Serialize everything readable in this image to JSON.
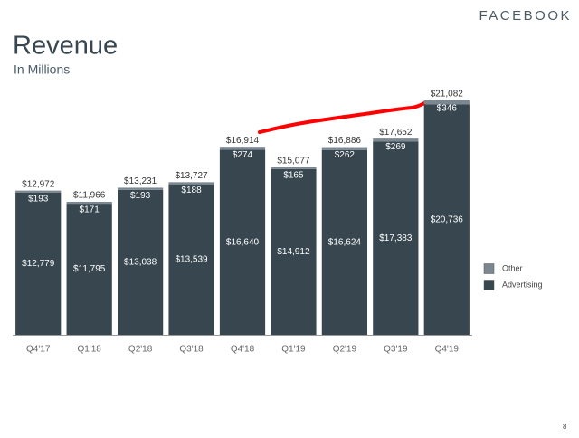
{
  "brand": "FACEBOOK",
  "page_number": "8",
  "chart_data": {
    "type": "stacked-bar",
    "title": "Revenue",
    "subtitle": "In Millions",
    "categories": [
      "Q4'17",
      "Q1'18",
      "Q2'18",
      "Q3'18",
      "Q4'18",
      "Q1'19",
      "Q2'19",
      "Q3'19",
      "Q4'19"
    ],
    "series": [
      {
        "name": "Advertising",
        "color": "#37464f",
        "values": [
          12779,
          11795,
          13038,
          13539,
          16640,
          14912,
          16624,
          17383,
          20736
        ],
        "value_labels": [
          "$12,779",
          "$11,795",
          "$13,038",
          "$13,539",
          "$16,640",
          "$14,912",
          "$16,624",
          "$17,383",
          "$20,736"
        ]
      },
      {
        "name": "Other",
        "color": "#7b8891",
        "values": [
          193,
          171,
          193,
          188,
          274,
          165,
          262,
          269,
          346
        ],
        "value_labels": [
          "$193",
          "$171",
          "$193",
          "$188",
          "$274",
          "$165",
          "$262",
          "$269",
          "$346"
        ]
      }
    ],
    "totals": [
      12972,
      11966,
      13231,
      13727,
      16914,
      15077,
      16886,
      17652,
      21082
    ],
    "total_labels": [
      "$12,972",
      "$11,966",
      "$13,231",
      "$13,727",
      "$16,914",
      "$15,077",
      "$16,886",
      "$17,652",
      "$21,082"
    ],
    "ylim": [
      0,
      22000
    ],
    "legend": "right"
  }
}
